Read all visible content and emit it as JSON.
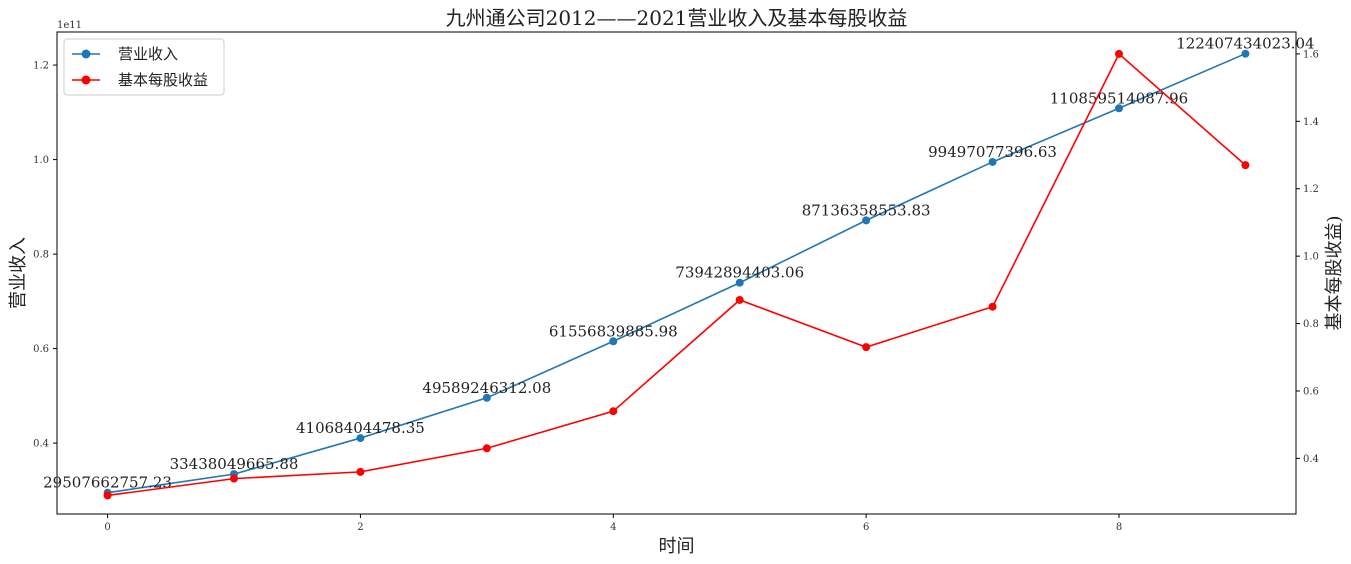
{
  "chart_data": {
    "type": "line",
    "title": "九州通公司2012——2021营业收入及基本每股收益",
    "xlabel": "时间",
    "ylabel_left": "营业收入",
    "ylabel_right": "基本每股收益)",
    "left_axis_exponent": "1e11",
    "x": [
      0,
      1,
      2,
      3,
      4,
      5,
      6,
      7,
      8,
      9
    ],
    "xticks": [
      0,
      2,
      4,
      6,
      8
    ],
    "xlim": [
      -0.4,
      9.4
    ],
    "left_ylim": [
      25000000000,
      127000000000
    ],
    "left_yticks": [
      40000000000,
      60000000000,
      80000000000,
      100000000000,
      120000000000
    ],
    "left_ytick_labels": [
      "0.4",
      "0.6",
      "0.8",
      "1.0",
      "1.2"
    ],
    "right_ylim": [
      0.235,
      1.665
    ],
    "right_yticks": [
      0.4,
      0.6,
      0.8,
      1.0,
      1.2,
      1.4,
      1.6
    ],
    "right_ytick_labels": [
      "0.4",
      "0.6",
      "0.8",
      "1.0",
      "1.2",
      "1.4",
      "1.6"
    ],
    "legend_position": "top-left",
    "grid": false,
    "series": [
      {
        "name": "营业收入",
        "axis": "left",
        "color": "#1f77b4",
        "marker": "circle",
        "values": [
          29507662757.23,
          33438049665.88,
          41068404478.35,
          49589246312.08,
          61556839885.98,
          73942894403.06,
          87136358553.83,
          99497077396.63,
          110859514087.96,
          122407434023.04
        ],
        "labels": [
          "29507662757.23",
          "33438049665.88",
          "41068404478.35",
          "49589246312.08",
          "61556839885.98",
          "73942894403.06",
          "87136358553.83",
          "99497077396.63",
          "110859514087.96",
          "122407434023.04"
        ]
      },
      {
        "name": "基本每股收益",
        "axis": "right",
        "color": "#ff0000",
        "marker": "circle",
        "values": [
          0.29,
          0.34,
          0.36,
          0.43,
          0.54,
          0.87,
          0.73,
          0.85,
          1.6,
          1.27
        ]
      }
    ]
  }
}
